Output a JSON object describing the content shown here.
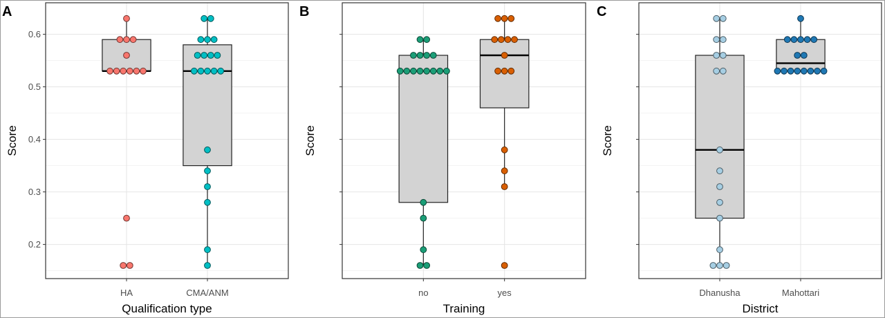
{
  "chart_data": [
    {
      "type": "boxplot",
      "panel_label": "A",
      "xlabel": "Qualification type",
      "ylabel": "Score",
      "show_y_tick_labels": true,
      "ylim": [
        0.135,
        0.66
      ],
      "yticks": [
        0.2,
        0.3,
        0.4,
        0.5,
        0.6
      ],
      "ytick_labels": [
        "0.2",
        "0.3",
        "0.4",
        "0.5",
        "0.6"
      ],
      "grid": true,
      "categories": [
        "HA",
        "CMA/ANM"
      ],
      "colors": [
        "#f8766d",
        "#00bfc4"
      ],
      "box_fill": "#d3d3d3",
      "boxes": [
        {
          "q1": 0.53,
          "median": 0.53,
          "q3": 0.59,
          "whisker_low": 0.53,
          "whisker_high": 0.63,
          "outliers": [
            0.25,
            0.16,
            0.16
          ]
        },
        {
          "q1": 0.35,
          "median": 0.53,
          "q3": 0.58,
          "whisker_low": 0.16,
          "whisker_high": 0.63
        }
      ],
      "points": [
        [
          0.63,
          0.59,
          0.59,
          0.59,
          0.56,
          0.53,
          0.53,
          0.53,
          0.53,
          0.53,
          0.53,
          0.25,
          0.16,
          0.16
        ],
        [
          0.63,
          0.63,
          0.59,
          0.59,
          0.59,
          0.56,
          0.56,
          0.56,
          0.56,
          0.53,
          0.53,
          0.53,
          0.53,
          0.53,
          0.38,
          0.34,
          0.31,
          0.28,
          0.19,
          0.16
        ]
      ]
    },
    {
      "type": "boxplot",
      "panel_label": "B",
      "xlabel": "Training",
      "ylabel": "Score",
      "show_y_tick_labels": false,
      "ylim": [
        0.135,
        0.66
      ],
      "yticks": [
        0.2,
        0.3,
        0.4,
        0.5,
        0.6
      ],
      "ytick_labels": [
        "0.2",
        "0.3",
        "0.4",
        "0.5",
        "0.6"
      ],
      "grid": true,
      "categories": [
        "no",
        "yes"
      ],
      "colors": [
        "#1b9e77",
        "#d95f02"
      ],
      "box_fill": "#d3d3d3",
      "boxes": [
        {
          "q1": 0.28,
          "median": 0.53,
          "q3": 0.56,
          "whisker_low": 0.16,
          "whisker_high": 0.59
        },
        {
          "q1": 0.46,
          "median": 0.56,
          "q3": 0.59,
          "whisker_low": 0.31,
          "whisker_high": 0.63,
          "outliers": [
            0.16
          ]
        }
      ],
      "points": [
        [
          0.59,
          0.59,
          0.56,
          0.56,
          0.56,
          0.56,
          0.53,
          0.53,
          0.53,
          0.53,
          0.53,
          0.53,
          0.53,
          0.53,
          0.28,
          0.25,
          0.19,
          0.16,
          0.16
        ],
        [
          0.63,
          0.63,
          0.63,
          0.59,
          0.59,
          0.59,
          0.59,
          0.56,
          0.53,
          0.53,
          0.53,
          0.38,
          0.34,
          0.31,
          0.16
        ]
      ]
    },
    {
      "type": "boxplot",
      "panel_label": "C",
      "xlabel": "District",
      "ylabel": "Score",
      "show_y_tick_labels": false,
      "ylim": [
        0.135,
        0.66
      ],
      "yticks": [
        0.2,
        0.3,
        0.4,
        0.5,
        0.6
      ],
      "ytick_labels": [
        "0.2",
        "0.3",
        "0.4",
        "0.5",
        "0.6"
      ],
      "grid": true,
      "categories": [
        "Dhanusha",
        "Mahottari"
      ],
      "colors": [
        "#a6cee3",
        "#1f78b4"
      ],
      "box_fill": "#d3d3d3",
      "boxes": [
        {
          "q1": 0.25,
          "median": 0.38,
          "q3": 0.56,
          "whisker_low": 0.16,
          "whisker_high": 0.63
        },
        {
          "q1": 0.53,
          "median": 0.545,
          "q3": 0.59,
          "whisker_low": 0.53,
          "whisker_high": 0.63
        }
      ],
      "points": [
        [
          0.63,
          0.63,
          0.59,
          0.59,
          0.56,
          0.56,
          0.53,
          0.53,
          0.38,
          0.34,
          0.31,
          0.28,
          0.25,
          0.19,
          0.16,
          0.16,
          0.16
        ],
        [
          0.63,
          0.59,
          0.59,
          0.59,
          0.59,
          0.59,
          0.56,
          0.56,
          0.53,
          0.53,
          0.53,
          0.53,
          0.53,
          0.53,
          0.53,
          0.53
        ]
      ]
    }
  ]
}
